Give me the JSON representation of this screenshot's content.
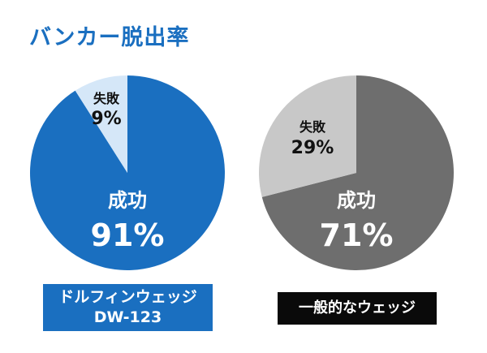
{
  "title": "バンカー脱出率",
  "colors": {
    "title": "#1a6fc0",
    "chart1_success": "#1a6fc0",
    "chart1_failure": "#d5e7f8",
    "chart2_success": "#6e6e6e",
    "chart2_failure": "#c8c8c8"
  },
  "chart_data": [
    {
      "type": "pie",
      "title": "",
      "caption_lines": [
        "ドルフィンウェッジ",
        "DW-123"
      ],
      "slices": [
        {
          "label": "成功",
          "value": 91,
          "value_text": "91%"
        },
        {
          "label": "失敗",
          "value": 9,
          "value_text": "9%"
        }
      ]
    },
    {
      "type": "pie",
      "title": "",
      "caption_lines": [
        "一般的なウェッジ"
      ],
      "slices": [
        {
          "label": "成功",
          "value": 71,
          "value_text": "71%"
        },
        {
          "label": "失敗",
          "value": 29,
          "value_text": "29%"
        }
      ]
    }
  ]
}
